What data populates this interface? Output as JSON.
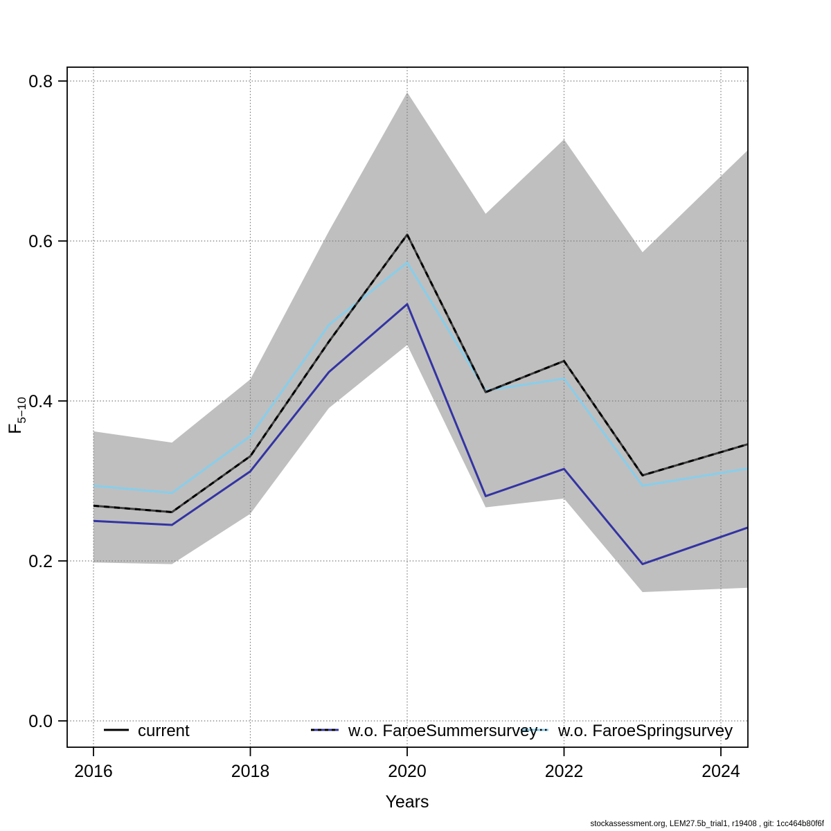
{
  "chart_data": {
    "type": "line",
    "title": "",
    "xlabel": "Years",
    "ylabel_base": "F",
    "ylabel_subscript": "5−10",
    "x": [
      2016,
      2017,
      2018,
      2019,
      2020,
      2021,
      2022,
      2023,
      2024
    ],
    "x_ticks": [
      "2016",
      "2018",
      "2020",
      "2022",
      "2024"
    ],
    "x_tick_values": [
      2016,
      2018,
      2020,
      2022,
      2024
    ],
    "y_ticks": [
      "0.0",
      "0.2",
      "0.4",
      "0.6",
      "0.8"
    ],
    "y_tick_values": [
      0.0,
      0.2,
      0.4,
      0.6,
      0.8
    ],
    "ylim": [
      0.0,
      0.8
    ],
    "grid": true,
    "legend_position": "bottom",
    "series": [
      {
        "name": "current",
        "color": "#000000",
        "base_color": "#3c3c3c",
        "style": "solid-with-black-dash-overlay",
        "values": [
          0.269,
          0.261,
          0.331,
          0.474,
          0.608,
          0.411,
          0.45,
          0.307,
          0.336
        ]
      },
      {
        "name": "w.o. FaroeSummersurvey",
        "color": "#3333a3",
        "style": "solid",
        "values": [
          0.25,
          0.245,
          0.312,
          0.436,
          0.521,
          0.281,
          0.315,
          0.196,
          0.23
        ]
      },
      {
        "name": "w.o. FaroeSpringsurvey",
        "color": "#87ceeb",
        "style": "solid",
        "values": [
          0.294,
          0.285,
          0.356,
          0.495,
          0.573,
          0.413,
          0.428,
          0.294,
          0.31
        ]
      }
    ],
    "band": {
      "name": "confidence-band",
      "color": "#bfbfbf",
      "upper": [
        0.362,
        0.348,
        0.427,
        0.612,
        0.786,
        0.634,
        0.727,
        0.586,
        0.681
      ],
      "lower": [
        0.198,
        0.196,
        0.259,
        0.391,
        0.47,
        0.267,
        0.278,
        0.161,
        0.165
      ]
    },
    "grid_color": "#7a7a7a",
    "axis_color": "#000000"
  },
  "footer": {
    "text": "stockassessment.org, LEM27.5b_trial1, r19408 , git: 1cc464b80f6f"
  }
}
